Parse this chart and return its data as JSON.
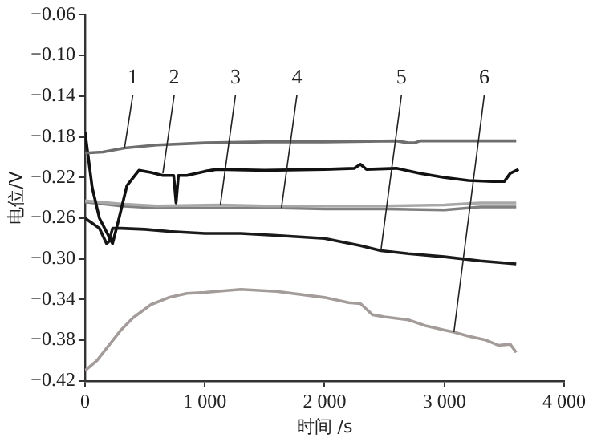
{
  "chart_data": {
    "type": "line",
    "xlabel": "时间 /s",
    "ylabel": "电位/V",
    "grid": false,
    "legend": false,
    "marker": "none",
    "line_style": "solid",
    "xlim": [
      0,
      4000
    ],
    "ylim": [
      -0.42,
      -0.06
    ],
    "xticks": [
      {
        "value": 0,
        "label": "0"
      },
      {
        "value": 1000,
        "label": "1 000"
      },
      {
        "value": 2000,
        "label": "2 000"
      },
      {
        "value": 3000,
        "label": "3 000"
      },
      {
        "value": 4000,
        "label": "4 000"
      }
    ],
    "yticks": [
      {
        "value": -0.42,
        "label": "−0.42"
      },
      {
        "value": -0.38,
        "label": "−0.38"
      },
      {
        "value": -0.34,
        "label": "−0.34"
      },
      {
        "value": -0.3,
        "label": "−0.30"
      },
      {
        "value": -0.26,
        "label": "−0.26"
      },
      {
        "value": -0.22,
        "label": "−0.22"
      },
      {
        "value": -0.18,
        "label": "−0.18"
      },
      {
        "value": -0.14,
        "label": "−0.14"
      },
      {
        "value": -0.1,
        "label": "−0.10"
      },
      {
        "value": -0.06,
        "label": "−0.06"
      }
    ],
    "series": [
      {
        "color": "#6e6e6e",
        "x": [
          0,
          150,
          330,
          600,
          1000,
          1500,
          2000,
          2600,
          2700,
          2750,
          2800,
          3000,
          3600
        ],
        "values": [
          -0.196,
          -0.195,
          -0.191,
          -0.188,
          -0.186,
          -0.185,
          -0.185,
          -0.184,
          -0.186,
          -0.186,
          -0.184,
          -0.184,
          -0.184
        ]
      },
      {
        "color": "#111111",
        "x": [
          0,
          60,
          120,
          230,
          280,
          350,
          450,
          550,
          650,
          740,
          760,
          780,
          850,
          1000,
          1100,
          1500,
          2000,
          2250,
          2300,
          2350,
          2600,
          2800,
          3000,
          3200,
          3400,
          3500,
          3550,
          3620
        ],
        "values": [
          -0.175,
          -0.23,
          -0.26,
          -0.285,
          -0.262,
          -0.228,
          -0.213,
          -0.215,
          -0.218,
          -0.218,
          -0.245,
          -0.218,
          -0.218,
          -0.214,
          -0.212,
          -0.213,
          -0.212,
          -0.211,
          -0.207,
          -0.212,
          -0.211,
          -0.216,
          -0.22,
          -0.223,
          -0.224,
          -0.224,
          -0.216,
          -0.212
        ]
      },
      {
        "color": "#a8a8a8",
        "x": [
          0,
          300,
          600,
          1130,
          1500,
          2000,
          2500,
          3000,
          3300,
          3600
        ],
        "values": [
          -0.243,
          -0.246,
          -0.248,
          -0.247,
          -0.248,
          -0.248,
          -0.248,
          -0.247,
          -0.245,
          -0.245
        ]
      },
      {
        "color": "#808080",
        "x": [
          0,
          300,
          600,
          1000,
          1640,
          2000,
          2500,
          3000,
          3300,
          3600
        ],
        "values": [
          -0.244,
          -0.248,
          -0.25,
          -0.25,
          -0.25,
          -0.251,
          -0.251,
          -0.252,
          -0.249,
          -0.249
        ]
      },
      {
        "color": "#1a1a1a",
        "x": [
          0,
          60,
          120,
          180,
          200,
          230,
          300,
          500,
          700,
          1000,
          1300,
          1600,
          2000,
          2300,
          2470,
          2700,
          3000,
          3300,
          3600
        ],
        "values": [
          -0.26,
          -0.265,
          -0.27,
          -0.285,
          -0.283,
          -0.27,
          -0.27,
          -0.271,
          -0.273,
          -0.275,
          -0.275,
          -0.277,
          -0.28,
          -0.287,
          -0.292,
          -0.295,
          -0.298,
          -0.302,
          -0.305
        ]
      },
      {
        "color": "#a39c9a",
        "x": [
          0,
          100,
          200,
          300,
          400,
          550,
          700,
          850,
          1000,
          1300,
          1600,
          2000,
          2200,
          2300,
          2400,
          2500,
          2700,
          2850,
          3000,
          3080,
          3200,
          3350,
          3450,
          3550,
          3600
        ],
        "values": [
          -0.41,
          -0.4,
          -0.385,
          -0.37,
          -0.358,
          -0.345,
          -0.338,
          -0.334,
          -0.333,
          -0.33,
          -0.332,
          -0.338,
          -0.343,
          -0.344,
          -0.355,
          -0.357,
          -0.36,
          -0.366,
          -0.37,
          -0.372,
          -0.376,
          -0.38,
          -0.385,
          -0.384,
          -0.392
        ]
      }
    ],
    "annotations": [
      {
        "text": "1",
        "x": 330,
        "y": -0.191
      },
      {
        "text": "2",
        "x": 650,
        "y": -0.216
      },
      {
        "text": "3",
        "x": 1130,
        "y": -0.247
      },
      {
        "text": "4",
        "x": 1640,
        "y": -0.25
      },
      {
        "text": "5",
        "x": 2470,
        "y": -0.292
      },
      {
        "text": "6",
        "x": 3080,
        "y": -0.372
      }
    ]
  }
}
